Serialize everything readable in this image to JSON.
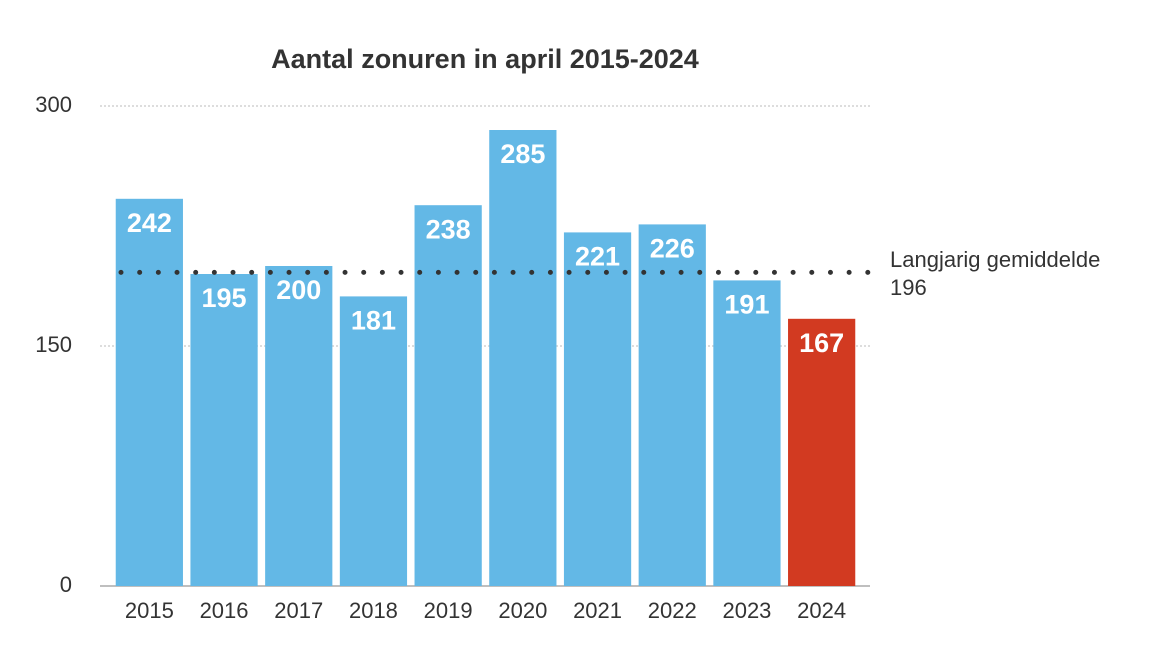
{
  "chart_data": {
    "type": "bar",
    "title": "Aantal zonuren in april 2015-2024",
    "categories": [
      "2015",
      "2016",
      "2017",
      "2018",
      "2019",
      "2020",
      "2021",
      "2022",
      "2023",
      "2024"
    ],
    "values": [
      242,
      195,
      200,
      181,
      238,
      285,
      221,
      226,
      191,
      167
    ],
    "colors": [
      "#63b8e6",
      "#63b8e6",
      "#63b8e6",
      "#63b8e6",
      "#63b8e6",
      "#63b8e6",
      "#63b8e6",
      "#63b8e6",
      "#63b8e6",
      "#d23a21"
    ],
    "ylim": [
      0,
      300
    ],
    "yticks": [
      0,
      150,
      300
    ],
    "grid": true,
    "reference_line": {
      "value": 196,
      "label": "Langjarig gemiddelde",
      "color": "#333333"
    }
  }
}
